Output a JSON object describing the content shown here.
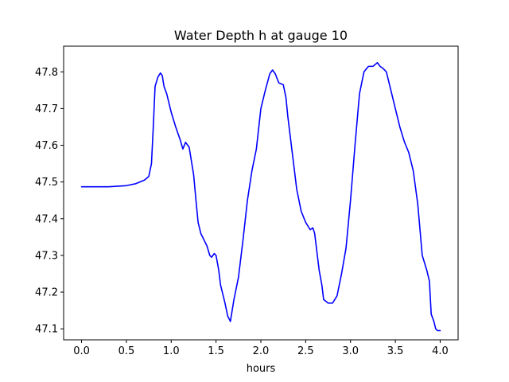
{
  "chart_data": {
    "type": "line",
    "title": "Water Depth h at gauge 10",
    "xlabel": "hours",
    "ylabel": "",
    "xlim": [
      -0.2,
      4.2
    ],
    "ylim": [
      47.07,
      47.87
    ],
    "xticks": [
      0.0,
      0.5,
      1.0,
      1.5,
      2.0,
      2.5,
      3.0,
      3.5,
      4.0
    ],
    "xtick_labels": [
      "0.0",
      "0.5",
      "1.0",
      "1.5",
      "2.0",
      "2.5",
      "3.0",
      "3.5",
      "4.0"
    ],
    "yticks": [
      47.1,
      47.2,
      47.3,
      47.4,
      47.5,
      47.6,
      47.7,
      47.8
    ],
    "ytick_labels": [
      "47.1",
      "47.2",
      "47.3",
      "47.4",
      "47.5",
      "47.6",
      "47.7",
      "47.8"
    ],
    "grid": false,
    "legend": "none",
    "series": [
      {
        "color": "#0000ff",
        "x": [
          0.0,
          0.3,
          0.5,
          0.6,
          0.7,
          0.75,
          0.78,
          0.8,
          0.82,
          0.85,
          0.88,
          0.9,
          0.92,
          0.95,
          1.0,
          1.05,
          1.1,
          1.13,
          1.16,
          1.2,
          1.25,
          1.28,
          1.3,
          1.33,
          1.37,
          1.4,
          1.43,
          1.45,
          1.48,
          1.5,
          1.53,
          1.55,
          1.58,
          1.6,
          1.63,
          1.66,
          1.7,
          1.75,
          1.8,
          1.85,
          1.9,
          1.95,
          2.0,
          2.05,
          2.1,
          2.13,
          2.16,
          2.2,
          2.25,
          2.28,
          2.3,
          2.35,
          2.4,
          2.45,
          2.5,
          2.55,
          2.58,
          2.6,
          2.63,
          2.65,
          2.68,
          2.7,
          2.75,
          2.8,
          2.85,
          2.9,
          2.95,
          3.0,
          3.05,
          3.1,
          3.15,
          3.2,
          3.25,
          3.3,
          3.33,
          3.36,
          3.4,
          3.45,
          3.5,
          3.55,
          3.6,
          3.65,
          3.7,
          3.75,
          3.8,
          3.85,
          3.88,
          3.9,
          3.93,
          3.95,
          3.97,
          4.0
        ],
        "y": [
          47.487,
          47.487,
          47.49,
          47.495,
          47.505,
          47.515,
          47.55,
          47.65,
          47.76,
          47.785,
          47.797,
          47.79,
          47.76,
          47.74,
          47.69,
          47.65,
          47.615,
          47.59,
          47.608,
          47.595,
          47.52,
          47.44,
          47.39,
          47.36,
          47.34,
          47.325,
          47.3,
          47.295,
          47.305,
          47.3,
          47.26,
          47.22,
          47.19,
          47.17,
          47.135,
          47.12,
          47.18,
          47.24,
          47.34,
          47.45,
          47.53,
          47.59,
          47.7,
          47.75,
          47.795,
          47.805,
          47.795,
          47.77,
          47.765,
          47.73,
          47.68,
          47.58,
          47.48,
          47.42,
          47.39,
          47.37,
          47.375,
          47.36,
          47.3,
          47.26,
          47.22,
          47.18,
          47.17,
          47.17,
          47.19,
          47.25,
          47.32,
          47.45,
          47.6,
          47.74,
          47.8,
          47.815,
          47.815,
          47.825,
          47.815,
          47.81,
          47.8,
          47.75,
          47.7,
          47.65,
          47.61,
          47.58,
          47.53,
          47.44,
          47.3,
          47.26,
          47.23,
          47.14,
          47.12,
          47.1,
          47.095,
          47.095
        ]
      }
    ]
  }
}
